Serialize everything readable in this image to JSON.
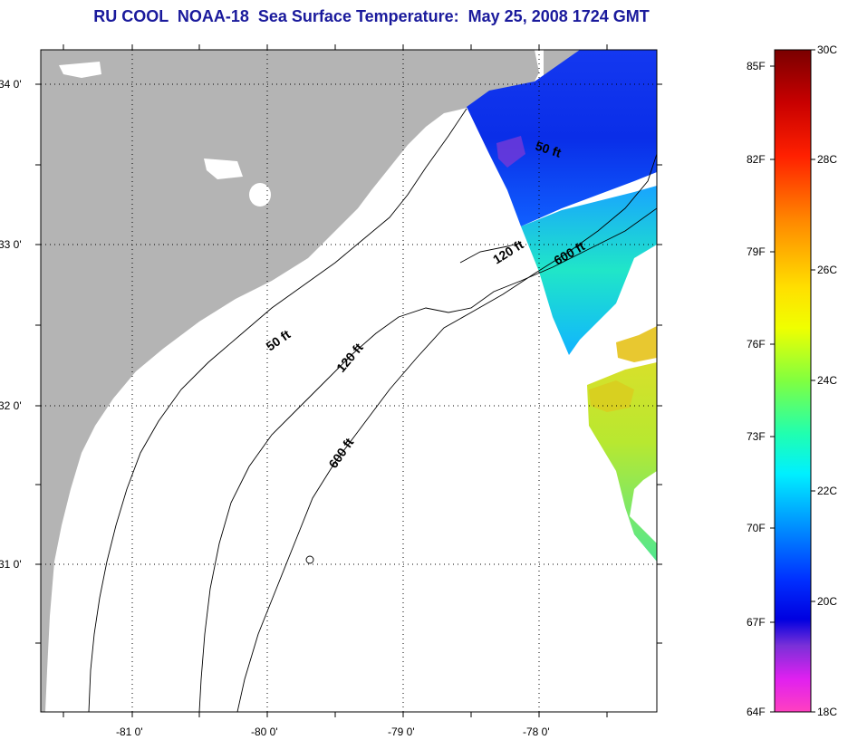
{
  "title": "RU COOL  NOAA-18  Sea Surface Temperature:  May 25, 2008 1724 GMT",
  "map": {
    "latitude_ticks": [
      "34 0'",
      "33 0'",
      "32 0'",
      "31 0'"
    ],
    "longitude_ticks": [
      "-81 0'",
      "-80 0'",
      "-79 0'",
      "-78 0'"
    ],
    "contour_labels": [
      {
        "id": "50ft-north",
        "text": "50 ft"
      },
      {
        "id": "120ft-north",
        "text": "120 ft"
      },
      {
        "id": "600ft-north",
        "text": "600 ft"
      },
      {
        "id": "50ft-south",
        "text": "50 ft"
      },
      {
        "id": "120ft-south",
        "text": "120 ft"
      },
      {
        "id": "600ft-south",
        "text": "600 ft"
      }
    ],
    "land_color": "#b4b4b4",
    "water_color": "#ffffff",
    "grid_style": "dotted"
  },
  "colorbar": {
    "fahrenheit_labels": [
      "85F",
      "82F",
      "79F",
      "76F",
      "73F",
      "70F",
      "67F",
      "64F"
    ],
    "celsius_labels": [
      "30C",
      "28C",
      "26C",
      "24C",
      "22C",
      "20C",
      "18C"
    ],
    "range_c": [
      18,
      30
    ],
    "colors_top_to_bottom": [
      "#7a0000",
      "#d00000",
      "#ff3c00",
      "#ff8c00",
      "#ffd000",
      "#ffff00",
      "#a0ff20",
      "#30ff80",
      "#00ffe0",
      "#00b4ff",
      "#0050ff",
      "#0000f0",
      "#8a2be2",
      "#ff00ff",
      "#ff40c8"
    ]
  }
}
